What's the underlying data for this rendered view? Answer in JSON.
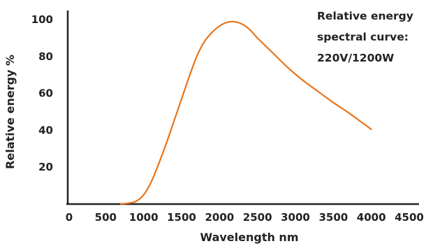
{
  "chart_data": {
    "type": "line",
    "title": "",
    "annotation": [
      "Relative energy",
      "spectral curve:",
      "220V/1200W"
    ],
    "xlabel": "Wavelength nm",
    "ylabel": "Relative energy %",
    "xlim": [
      0,
      4500
    ],
    "ylim": [
      0,
      100
    ],
    "x_ticks": [
      "0",
      "500",
      "1000",
      "1500",
      "2000",
      "2500",
      "3000",
      "3500",
      "4000",
      "4500"
    ],
    "y_ticks": [
      "20",
      "40",
      "60",
      "80",
      "100"
    ],
    "grid": false,
    "line_color": "#e8741a",
    "series": [
      {
        "x": [
          700,
          800,
          900,
          1000,
          1100,
          1200,
          1300,
          1400,
          1500,
          1600,
          1700,
          1800,
          1900,
          2000,
          2100,
          2200,
          2300,
          2400,
          2500,
          2700,
          2900,
          3100,
          3300,
          3500,
          3700,
          3900,
          4000
        ],
        "y": [
          0,
          0.5,
          1.5,
          5,
          12,
          22,
          33,
          45,
          57,
          69,
          80,
          88,
          93,
          96.5,
          98.5,
          98.8,
          97.5,
          94.5,
          90,
          82,
          74,
          67,
          61,
          55,
          49.5,
          43.5,
          40.5
        ]
      }
    ]
  }
}
